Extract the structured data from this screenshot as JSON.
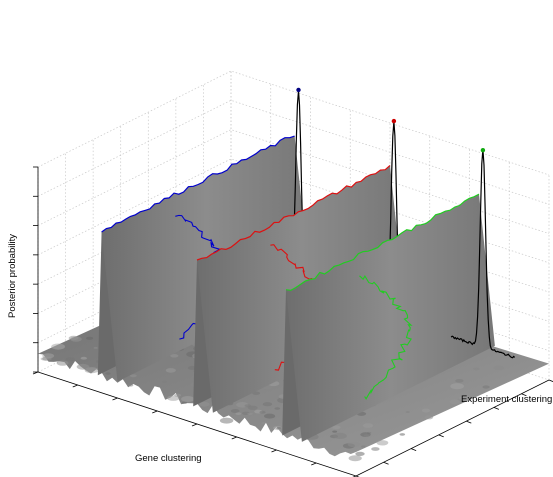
{
  "chart_data": {
    "type": "surface",
    "title": "",
    "xlabel": "Gene clustering",
    "ylabel": "Experiment clustering",
    "zlabel": "Posterior probability",
    "grid": true,
    "tick_labels_shown": false,
    "surface_color": "#7a7a7a",
    "series": [
      {
        "color": "#0000cc",
        "marker_color": "#000080",
        "ridge_gene_position": 0.2
      },
      {
        "color": "#dd1111",
        "marker_color": "#cc0000",
        "ridge_gene_position": 0.5
      },
      {
        "color": "#22cc22",
        "marker_color": "#11aa11",
        "ridge_gene_position": 0.78
      }
    ],
    "back_wall_profile_color": "#000000"
  }
}
